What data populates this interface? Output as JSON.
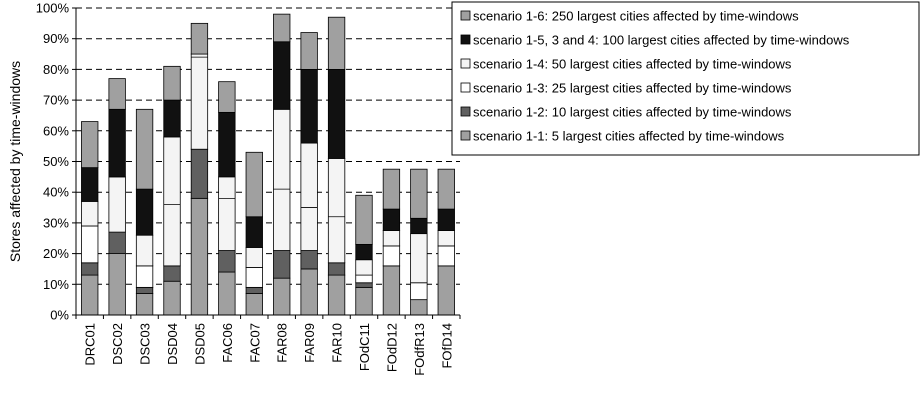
{
  "chart_data": {
    "type": "bar",
    "stacked": true,
    "ylabel": "Stores affected by time-windows",
    "ylim": [
      0,
      100
    ],
    "yticks": [
      "0%",
      "10%",
      "20%",
      "30%",
      "40%",
      "50%",
      "60%",
      "70%",
      "80%",
      "90%",
      "100%"
    ],
    "grid": true,
    "legend_position": "top-right",
    "categories": [
      "DRC01",
      "DSC02",
      "DSC03",
      "DSD04",
      "DSD05",
      "FAC06",
      "FAC07",
      "FAR08",
      "FAR09",
      "FAR10",
      "FOdC11",
      "FOdD12",
      "FOdfR13",
      "FOfD14"
    ],
    "series": [
      {
        "name": "scenario 1-1: 5 largest cities affected by time-windows",
        "color": "#a0a0a0",
        "values": [
          13,
          20,
          7,
          11,
          38,
          14,
          7,
          12,
          15,
          13,
          9,
          16,
          5,
          16
        ]
      },
      {
        "name": "scenario 1-2: 10 largest cities affected by time-windows",
        "color": "#606060",
        "values": [
          4,
          7,
          2,
          5,
          16,
          7,
          2,
          9,
          6,
          4,
          1.5,
          0,
          0,
          0
        ]
      },
      {
        "name": "scenario 1-3: 25 largest cities affected by time-windows",
        "color": "#ffffff",
        "values": [
          12,
          0,
          7,
          0,
          0,
          0,
          6.5,
          0,
          0,
          0,
          2.5,
          6.5,
          5.5,
          6.5
        ]
      },
      {
        "name": "scenario 1-4: 50 largest cities affected by time-windows",
        "color": "#f4f4f4",
        "values": [
          8,
          18,
          10,
          42,
          31,
          24,
          6.5,
          46,
          35,
          34,
          5,
          5,
          16,
          5
        ]
      },
      {
        "name": "scenario 1-5, 3 and 4: 100 largest cities affected by time-windows",
        "color": "#111111",
        "values": [
          11,
          22,
          15,
          12,
          0,
          21,
          10,
          22,
          24,
          29,
          5,
          7,
          5,
          7
        ]
      },
      {
        "name": "scenario 1-6: 250 largest cities affected by time-windows",
        "color": "#a0a0a0",
        "values": [
          15,
          10,
          26,
          11,
          10,
          10,
          21,
          9,
          12,
          17,
          16,
          13,
          16,
          13
        ]
      }
    ],
    "extra_boundaries": {
      "DSC02": [
        45
      ],
      "FAC06": [
        38
      ],
      "FAR08": [
        41
      ],
      "FAR09": [
        35
      ],
      "FAR10": [
        32
      ],
      "DSD04": [
        36
      ],
      "DSD05": [
        84
      ]
    }
  }
}
